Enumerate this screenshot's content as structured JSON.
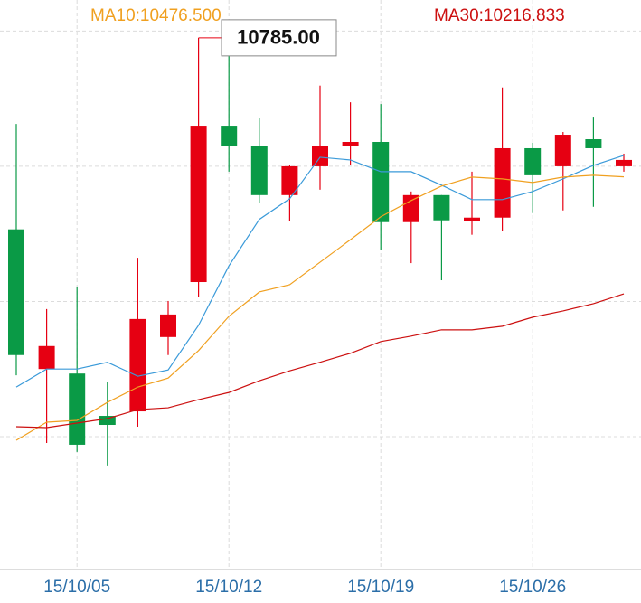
{
  "chart_data": {
    "type": "candlestick",
    "categories": [
      null,
      null,
      "15/10/05",
      null,
      null,
      null,
      null,
      "15/10/12",
      null,
      null,
      null,
      null,
      "15/10/19",
      null,
      null,
      null,
      null,
      "15/10/26",
      null,
      null,
      null
    ],
    "open": [
      10360,
      10050,
      10040,
      9946,
      9956,
      10121,
      10243,
      10590,
      10544,
      10436,
      10500,
      10544,
      10554,
      10376,
      10436,
      10378,
      10386,
      10540,
      10500,
      10560,
      10500
    ],
    "high": [
      10594,
      10183,
      10233,
      10022,
      10297,
      10201,
      10785,
      10749,
      10608,
      10502,
      10679,
      10642,
      10638,
      10444,
      10436,
      10488,
      10675,
      10552,
      10576,
      10610,
      10528
    ],
    "low": [
      10036,
      9886,
      9866,
      9836,
      9922,
      10081,
      10211,
      10488,
      10418,
      10378,
      10448,
      10502,
      10315,
      10285,
      10247,
      10348,
      10356,
      10396,
      10402,
      10410,
      10488
    ],
    "close": [
      10081,
      10101,
      9882,
      9926,
      10161,
      10171,
      10590,
      10544,
      10436,
      10500,
      10544,
      10554,
      10376,
      10436,
      10380,
      10386,
      10540,
      10480,
      10570,
      10540,
      10514
    ],
    "up_color": "#e60012",
    "down_color": "#0a9a46",
    "annotation": "10785.00",
    "series": [
      {
        "color": "#3a9ad9",
        "values": [
          10010,
          10050,
          10050,
          10065,
          10034,
          10048,
          10147,
          10279,
          10382,
          10428,
          10520,
          10514,
          10488,
          10488,
          10458,
          10426,
          10426,
          10444,
          10472,
          10502,
          10524
        ]
      },
      {
        "name": "MA10:10476.500",
        "color": "#f0a020",
        "values": [
          9892,
          9932,
          9936,
          9976,
          10010,
          10030,
          10091,
          10167,
          10221,
          10237,
          10287,
          10337,
          10388,
          10424,
          10456,
          10476,
          10472,
          10464,
          10476,
          10480,
          10476.5
        ]
      },
      {
        "name": "MA30:10216.833",
        "color": "#cc1010",
        "values": [
          9922,
          9920,
          9930,
          9940,
          9960,
          9964,
          9982,
          9998,
          10024,
          10046,
          10065,
          10085,
          10111,
          10123,
          10137,
          10137,
          10145,
          10165,
          10179,
          10195,
          10216.833
        ]
      }
    ],
    "ylim": [
      9605,
      10869
    ],
    "ygrid": [
      9900,
      10200,
      10500,
      10800
    ],
    "grid": true
  }
}
